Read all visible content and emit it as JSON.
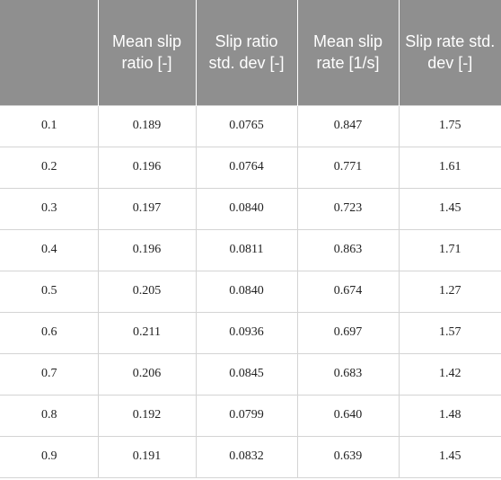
{
  "table": {
    "headers": [
      "",
      "Mean slip ratio [-]",
      "Slip ratio std. dev [-]",
      "Mean slip rate [1/s]",
      "Slip rate std. dev [-]"
    ],
    "rows": [
      [
        "0.1",
        "0.189",
        "0.0765",
        "0.847",
        "1.75"
      ],
      [
        "0.2",
        "0.196",
        "0.0764",
        "0.771",
        "1.61"
      ],
      [
        "0.3",
        "0.197",
        "0.0840",
        "0.723",
        "1.45"
      ],
      [
        "0.4",
        "0.196",
        "0.0811",
        "0.863",
        "1.71"
      ],
      [
        "0.5",
        "0.205",
        "0.0840",
        "0.674",
        "1.27"
      ],
      [
        "0.6",
        "0.211",
        "0.0936",
        "0.697",
        "1.57"
      ],
      [
        "0.7",
        "0.206",
        "0.0845",
        "0.683",
        "1.42"
      ],
      [
        "0.8",
        "0.192",
        "0.0799",
        "0.640",
        "1.48"
      ],
      [
        "0.9",
        "0.191",
        "0.0832",
        "0.639",
        "1.45"
      ]
    ]
  }
}
